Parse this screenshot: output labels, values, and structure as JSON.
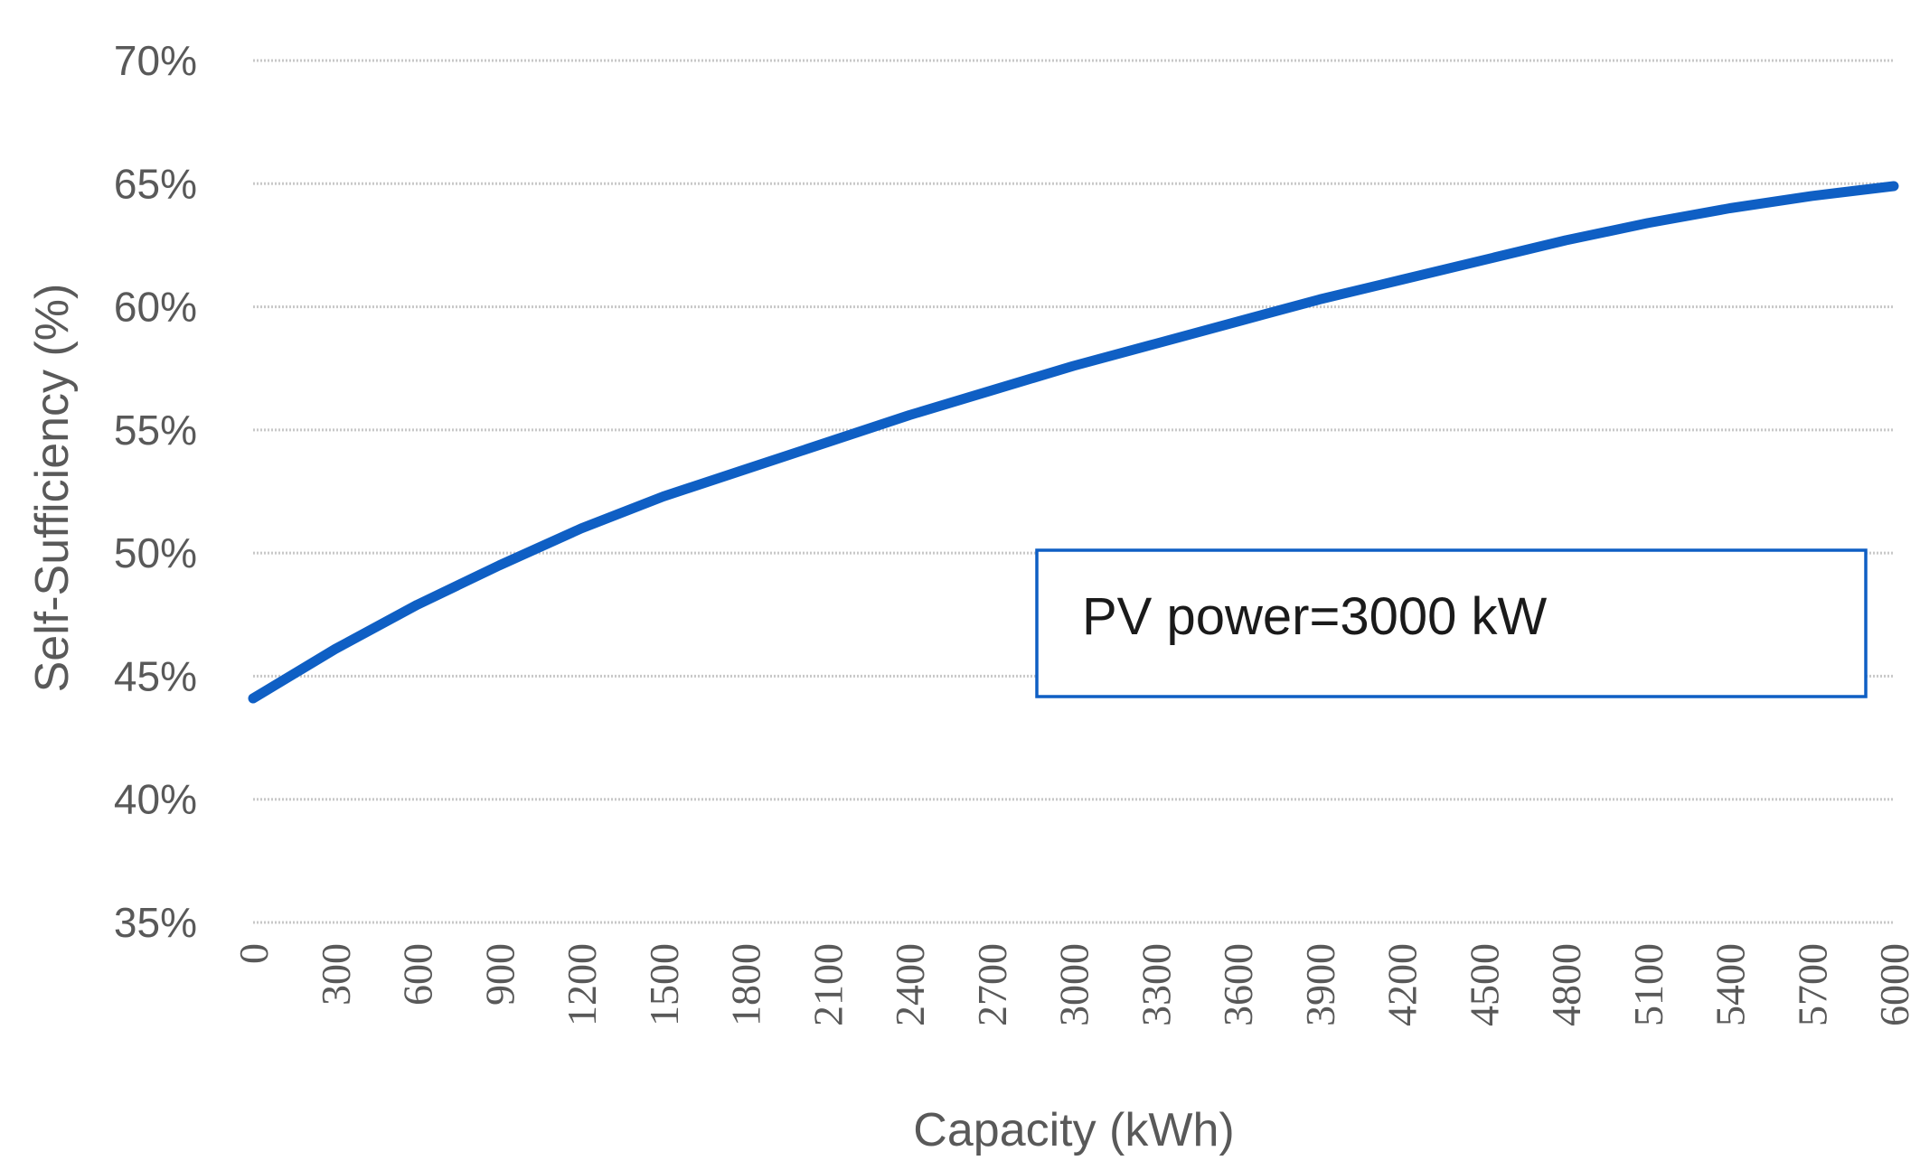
{
  "chart_data": {
    "type": "line",
    "title": "",
    "xlabel": "Capacity (kWh)",
    "ylabel": "Self-Sufficiency (%)",
    "xlim": [
      0,
      6000
    ],
    "ylim": [
      35,
      70
    ],
    "grid": true,
    "x_ticks": [
      "0",
      "300",
      "600",
      "900",
      "1200",
      "1500",
      "1800",
      "2100",
      "2400",
      "2700",
      "3000",
      "3300",
      "3600",
      "3900",
      "4200",
      "4500",
      "4800",
      "5100",
      "5400",
      "5700",
      "6000"
    ],
    "y_ticks": [
      "35%",
      "40%",
      "45%",
      "50%",
      "55%",
      "60%",
      "65%",
      "70%"
    ],
    "annotation": "PV power=3000 kW",
    "series": [
      {
        "name": "Self-Sufficiency",
        "color": "#0f5fc4",
        "x": [
          0,
          300,
          600,
          900,
          1200,
          1500,
          1800,
          2100,
          2400,
          2700,
          3000,
          3300,
          3600,
          3900,
          4200,
          4500,
          4800,
          5100,
          5400,
          5700,
          6000
        ],
        "values": [
          44.1,
          46.1,
          47.9,
          49.5,
          51.0,
          52.3,
          53.4,
          54.5,
          55.6,
          56.6,
          57.6,
          58.5,
          59.4,
          60.3,
          61.1,
          61.9,
          62.7,
          63.4,
          64.0,
          64.5,
          64.9
        ]
      }
    ]
  }
}
